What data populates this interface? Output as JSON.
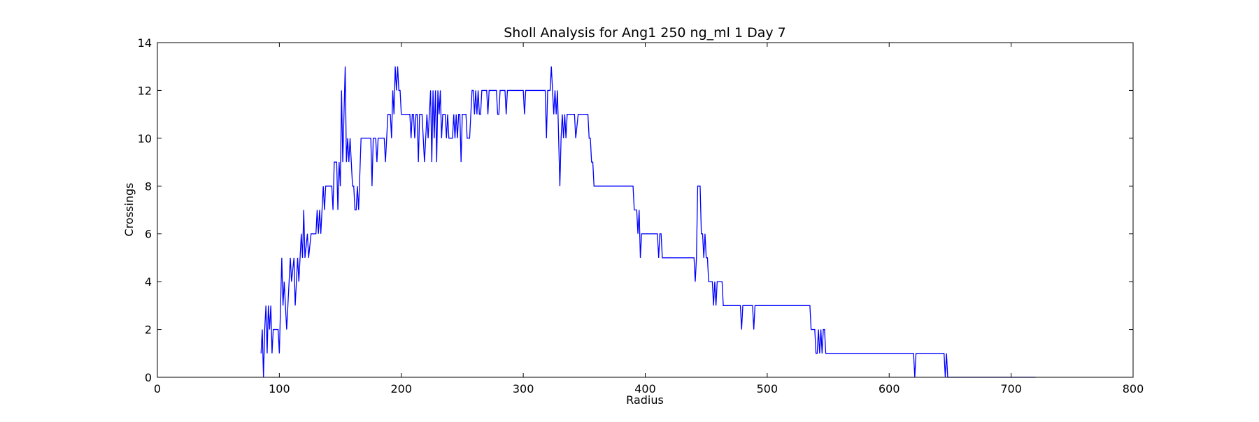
{
  "chart_data": {
    "type": "line",
    "title": "Sholl Analysis for Ang1 250 ng_ml 1 Day 7",
    "x_label": "Radius",
    "y_label": "Crossings",
    "color": "#0000ff",
    "xlim": [
      0,
      800
    ],
    "ylim": [
      0,
      14
    ],
    "xticks": [
      0,
      100,
      200,
      300,
      400,
      500,
      600,
      700,
      800
    ],
    "yticks": [
      0,
      2,
      4,
      6,
      8,
      10,
      12,
      14
    ],
    "x": [
      85,
      86,
      87,
      88,
      89,
      90,
      91,
      92,
      93,
      94,
      95,
      99,
      100,
      102,
      103,
      104,
      106,
      107,
      109,
      110,
      112,
      113,
      115,
      116,
      118,
      119,
      120,
      121,
      123,
      124,
      126,
      130,
      131,
      132,
      133,
      134,
      136,
      137,
      138,
      143,
      144,
      145,
      147,
      148,
      149,
      150,
      151,
      152,
      154,
      155,
      156,
      157,
      158,
      160,
      161,
      162,
      163,
      164,
      165,
      167,
      175,
      176,
      177,
      179,
      180,
      181,
      186,
      187,
      189,
      191,
      192,
      193,
      194,
      195,
      196,
      197,
      198,
      199,
      200,
      207,
      208,
      209,
      210,
      211,
      212,
      213,
      214,
      215,
      217,
      218,
      219,
      220,
      221,
      222,
      223,
      224,
      225,
      226,
      227,
      228,
      229,
      230,
      231,
      232,
      233,
      234,
      236,
      237,
      238,
      239,
      242,
      243,
      244,
      245,
      246,
      247,
      248,
      249,
      250,
      253,
      254,
      256,
      257,
      258,
      259,
      260,
      261,
      262,
      263,
      264,
      265,
      266,
      270,
      271,
      272,
      278,
      279,
      280,
      281,
      285,
      286,
      287,
      300,
      301,
      302,
      318,
      319,
      320,
      322,
      323,
      324,
      325,
      326,
      327,
      328,
      329,
      330,
      331,
      332,
      333,
      334,
      335,
      336,
      342,
      343,
      345,
      353,
      354,
      355,
      356,
      357,
      358,
      390,
      391,
      393,
      394,
      395,
      396,
      397,
      410,
      411,
      412,
      413,
      414,
      440,
      441,
      442,
      443,
      445,
      446,
      447,
      448,
      449,
      450,
      451,
      452,
      455,
      456,
      457,
      458,
      459,
      463,
      464,
      478,
      479,
      480,
      488,
      489,
      490,
      535,
      536,
      539,
      540,
      541,
      542,
      543,
      544,
      545,
      546,
      547,
      548,
      620,
      621,
      622,
      645,
      646,
      647,
      648,
      720
    ],
    "values": [
      1,
      2,
      0,
      2,
      3,
      1,
      3,
      2,
      3,
      1,
      2,
      2,
      1,
      5,
      3,
      4,
      2,
      3,
      5,
      4,
      5,
      3,
      5,
      4,
      6,
      5,
      7,
      5,
      6,
      5,
      6,
      6,
      7,
      6,
      7,
      6,
      8,
      7,
      8,
      8,
      7,
      9,
      9,
      7,
      9,
      8,
      12,
      9,
      13,
      9,
      10,
      9,
      10,
      8,
      8,
      7,
      7,
      8,
      7,
      10,
      10,
      8,
      10,
      10,
      9,
      10,
      10,
      9,
      11,
      11,
      10,
      12,
      11,
      13,
      12,
      13,
      12,
      12,
      11,
      11,
      10,
      11,
      11,
      10,
      11,
      11,
      9,
      11,
      11,
      10,
      9,
      10,
      11,
      10,
      11,
      12,
      9,
      12,
      10,
      12,
      9,
      12,
      11,
      12,
      10,
      11,
      11,
      10,
      11,
      10,
      10,
      11,
      10,
      11,
      10,
      11,
      11,
      9,
      11,
      11,
      10,
      10,
      11,
      12,
      12,
      11,
      12,
      11,
      12,
      11,
      11,
      12,
      12,
      11,
      12,
      12,
      11,
      11,
      12,
      12,
      11,
      12,
      12,
      11,
      12,
      12,
      10,
      12,
      12,
      13,
      12,
      11,
      12,
      11,
      12,
      10,
      8,
      10,
      11,
      10,
      11,
      10,
      11,
      11,
      10,
      11,
      11,
      10,
      10,
      9,
      9,
      8,
      8,
      7,
      7,
      6,
      7,
      5,
      6,
      6,
      5,
      6,
      6,
      5,
      5,
      4,
      5,
      8,
      8,
      6,
      6,
      5,
      6,
      5,
      5,
      4,
      4,
      3,
      4,
      3,
      4,
      4,
      3,
      3,
      2,
      3,
      3,
      2,
      3,
      3,
      2,
      2,
      1,
      1,
      2,
      1,
      2,
      1,
      2,
      2,
      1,
      1,
      0,
      1,
      1,
      0,
      1,
      0,
      0
    ]
  }
}
